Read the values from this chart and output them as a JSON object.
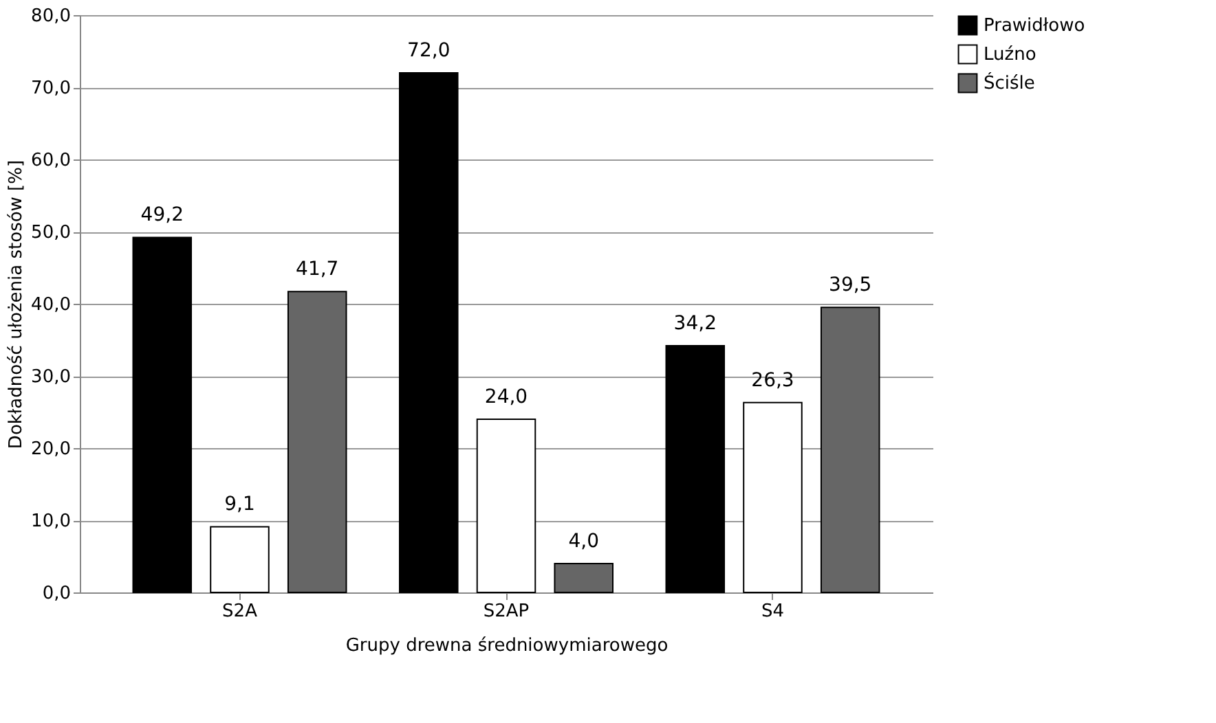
{
  "chart_data": {
    "type": "bar",
    "xlabel": "Grupy drewna średniowymiarowego",
    "ylabel": "Dokładność ułożenia stosów [%]",
    "categories": [
      "S2A",
      "S2AP",
      "S4"
    ],
    "series": [
      {
        "name": "Prawidłowo",
        "color": "#000000",
        "values": [
          49.2,
          72.0,
          34.2
        ],
        "value_labels": [
          "49,2",
          "72,0",
          "34,2"
        ]
      },
      {
        "name": "Luźno",
        "color": "#ffffff",
        "values": [
          9.1,
          24.0,
          26.3
        ],
        "value_labels": [
          "9,1",
          "24,0",
          "26,3"
        ]
      },
      {
        "name": "Ściśle",
        "color": "#666666",
        "values": [
          41.7,
          4.0,
          39.5
        ],
        "value_labels": [
          "41,7",
          "4,0",
          "39,5"
        ]
      }
    ],
    "ylim": [
      0,
      80
    ],
    "yticks": [
      {
        "value": 0,
        "label": "0,0"
      },
      {
        "value": 10,
        "label": "10,0"
      },
      {
        "value": 20,
        "label": "20,0"
      },
      {
        "value": 30,
        "label": "30,0"
      },
      {
        "value": 40,
        "label": "40,0"
      },
      {
        "value": 50,
        "label": "50,0"
      },
      {
        "value": 60,
        "label": "60,0"
      },
      {
        "value": 70,
        "label": "70,0"
      },
      {
        "value": 80,
        "label": "80,0"
      }
    ],
    "grid": "y",
    "legend": "right"
  }
}
